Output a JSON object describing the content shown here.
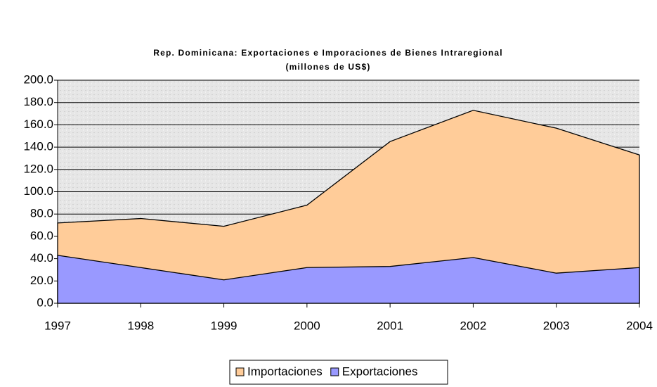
{
  "chart_data": {
    "type": "area",
    "title": "Rep. Dominicana: Exportaciones e Imporaciones de Bienes Intraregional",
    "subtitle": "(millones de US$)",
    "categories": [
      "1997",
      "1998",
      "1999",
      "2000",
      "2001",
      "2002",
      "2003",
      "2004"
    ],
    "series": [
      {
        "name": "Importaciones",
        "color": "#ffcc99",
        "values": [
          72,
          76,
          69,
          88,
          145,
          173,
          157,
          133
        ]
      },
      {
        "name": "Exportaciones",
        "color": "#9999ff",
        "values": [
          43,
          32,
          21,
          32,
          33,
          41,
          27,
          32
        ]
      }
    ],
    "ylim": [
      0,
      200
    ],
    "yticks": [
      {
        "value": 0,
        "label": "0.0"
      },
      {
        "value": 20,
        "label": "20.0"
      },
      {
        "value": 40,
        "label": "40.0"
      },
      {
        "value": 60,
        "label": "60.0"
      },
      {
        "value": 80,
        "label": "80.0"
      },
      {
        "value": 100,
        "label": "100.0"
      },
      {
        "value": 120,
        "label": "120.0"
      },
      {
        "value": 140,
        "label": "140.0"
      },
      {
        "value": 160,
        "label": "160.0"
      },
      {
        "value": 180,
        "label": "180.0"
      },
      {
        "value": 200,
        "label": "200.0"
      }
    ],
    "grid": true,
    "legend": "bottom"
  }
}
